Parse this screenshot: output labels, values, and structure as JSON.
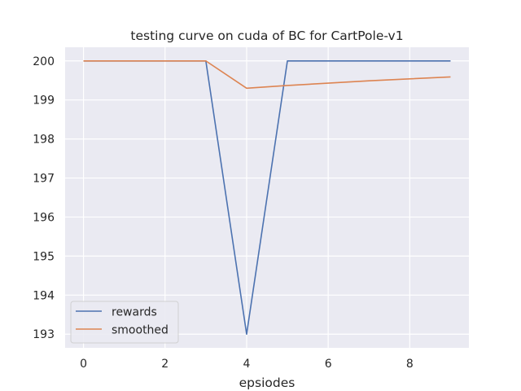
{
  "chart_data": {
    "type": "line",
    "title": "testing curve on cuda of BC for CartPole-v1",
    "xlabel": "epsiodes",
    "ylabel": "",
    "x": [
      0,
      1,
      2,
      3,
      4,
      5,
      6,
      7,
      8,
      9
    ],
    "xlim": [
      -0.45,
      9.45
    ],
    "ylim": [
      192.65,
      200.35
    ],
    "xticks": [
      "0",
      "2",
      "4",
      "6",
      "8"
    ],
    "yticks": [
      "193",
      "194",
      "195",
      "196",
      "197",
      "198",
      "199",
      "200"
    ],
    "grid": true,
    "legend_position": "lower left",
    "series": [
      {
        "name": "rewards",
        "color": "#4c72b0",
        "values": [
          200,
          200,
          200,
          200,
          193,
          200,
          200,
          200,
          200,
          200
        ]
      },
      {
        "name": "smoothed",
        "color": "#dd8452",
        "values": [
          200,
          200,
          200,
          200,
          199.3,
          199.37,
          199.43,
          199.49,
          199.54,
          199.59
        ]
      }
    ]
  }
}
